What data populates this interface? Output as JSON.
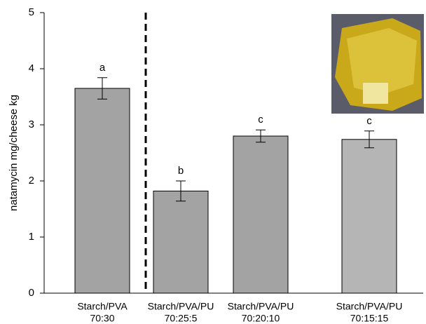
{
  "chart_data": {
    "type": "bar",
    "ylabel": "natamycin mg/cheese kg",
    "categories": [
      [
        "Starch/PVA",
        "70:30"
      ],
      [
        "Starch/PVA/PU",
        "70:25:5"
      ],
      [
        "Starch/PVA/PU",
        "70:20:10"
      ],
      [
        "Starch/PVA/PU",
        "70:15:15"
      ]
    ],
    "values": [
      3.65,
      1.82,
      2.8,
      2.74
    ],
    "errors": [
      0.19,
      0.18,
      0.11,
      0.15
    ],
    "annotations": [
      "a",
      "b",
      "c",
      "c"
    ],
    "colors": [
      "#a3a3a3",
      "#a3a3a3",
      "#a3a3a3",
      "#b5b5b5"
    ],
    "ylim": [
      0,
      5
    ],
    "yticks": [
      0,
      1,
      2,
      3,
      4,
      5
    ]
  }
}
